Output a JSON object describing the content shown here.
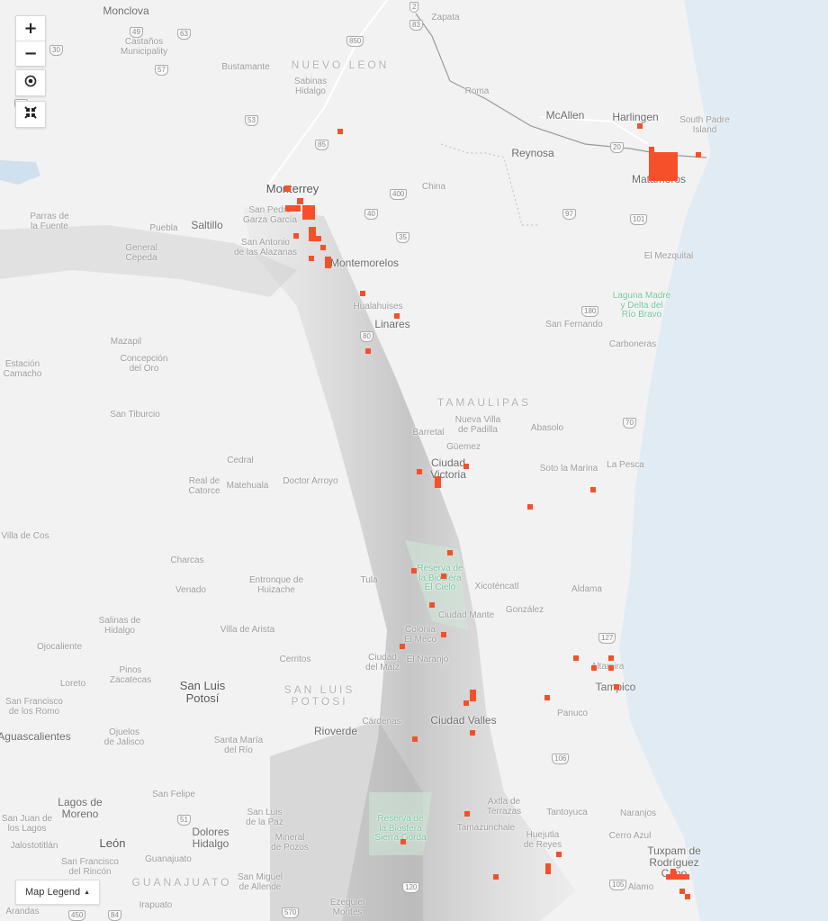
{
  "colors": {
    "land": "#f2f2f2",
    "water": "#e1ebf3",
    "marker": "#f5502a",
    "park": "#72c49a"
  },
  "controls": {
    "zoom_in": "+",
    "zoom_out": "−",
    "locate_icon": "crosshair-icon",
    "fit_icon": "collapse-arrows-icon"
  },
  "legend": {
    "label": "Map Legend",
    "arrow": "▲"
  },
  "map": {
    "labels": [
      "Monclova",
      "Castaños\nMunicipality",
      "Bustamante",
      "NUEVO LEON",
      "Sabinas\nHidalgo",
      "Monterrey",
      "San Pedro\nGarza García",
      "Saltillo",
      "Puebla",
      "Parras de\nla Fuente",
      "General\nCepeda",
      "San Antonio\nde las Alazanas",
      "Montemorelos",
      "Hualahuises",
      "Linares",
      "Estación\nCamacho",
      "Mazapil",
      "Concepción\ndel Oro",
      "San Tiburcio",
      "TAMAULIPAS",
      "Nueva Villa\nde Padilla",
      "Barretal",
      "Güemez",
      "Ciudad\nVictoria",
      "Abasolo",
      "Soto la Marina",
      "La Pesca",
      "Zapata",
      "Roma",
      "McAllen",
      "Harlingen",
      "South Padre\nIsland",
      "Reynosa",
      "Matamoros",
      "China",
      "El Mezquital",
      "Laguna Madre\ny Delta del\nRío Bravo",
      "San Fernando",
      "Carboneras",
      "Cedral",
      "Real de\nCatorce",
      "Matehuala",
      "Doctor Arroyo",
      "Villa de Cos",
      "Charcas",
      "Venado",
      "Entronque de\nHuizache",
      "Tula",
      "Reserva de\nla Biosfera\nEl Cielo",
      "Xicoténcatl",
      "Aldama",
      "Ciudad Mante",
      "González",
      "Salinas de\nHidalgo",
      "Villa de Arista",
      "Ojocaliente",
      "Cerritos",
      "Pinos\nZacatecas",
      "Loreto",
      "San Luis\nPotosí",
      "SAN LUIS\nPOTOSI",
      "San Francisco\nde los Romo",
      "Altamira",
      "Tampico",
      "Ciudad Valles",
      "Aguascalientes",
      "Ojuelos\nde Jalisco",
      "Santa María\ndel Río",
      "Rioverde",
      "Cárdenas",
      "Panuco",
      "San Felipe",
      "Axtla de\nTerrazas",
      "Tantoyuca",
      "Naranjos",
      "Lagos de\nMoreno",
      "San Juan de\nlos Lagos",
      "Dolores\nHidalgo",
      "San Luis\nde la Paz",
      "Mineral\nde Pozos",
      "Reserva de\nla Biosfera\nSierra Gorda",
      "Huejutla\nde Reyes",
      "Cerro Azul",
      "Tuxpam de\nRodríguez\nCano",
      "León",
      "Jalostotitlán",
      "Guanajuato",
      "San Francisco\ndel Rincón",
      "GUANAJUATO",
      "San Miguel\nde Allende",
      "Irapuato",
      "Ezequiel\nMontes",
      "Alamo",
      "Arandas",
      "Tamazunchale",
      "Ciudad\ndel Maíz",
      "Colonia\nEl Meco",
      "El Naranjo"
    ],
    "shields": [
      "30",
      "57",
      "53",
      "85",
      "850",
      "2",
      "83",
      "54",
      "40",
      "400",
      "35",
      "97",
      "20",
      "101",
      "180",
      "70",
      "80",
      "127",
      "106",
      "105",
      "450",
      "49",
      "63",
      "51",
      "120",
      "570",
      "84"
    ]
  }
}
